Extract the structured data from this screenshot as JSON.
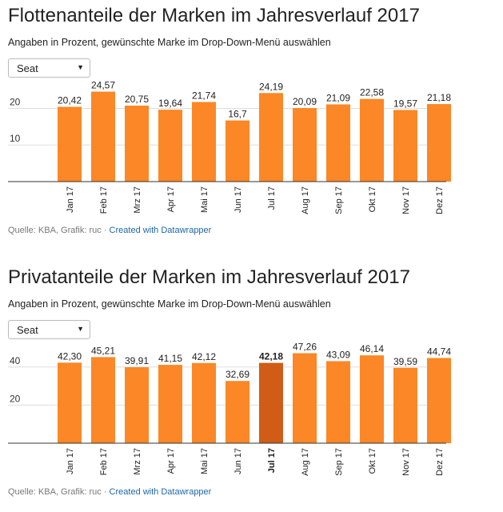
{
  "brand_colors": {
    "bar": "#fb8726",
    "bar_highlight": "#d05c17",
    "grid": "#dddddd",
    "axis": "#333333"
  },
  "charts": [
    {
      "title": "Flottenanteile der Marken im Jahresverlauf 2017",
      "subtitle": "Angaben in Prozent, gewünschte Marke im Drop-Down-Menü auswählen",
      "dropdown": {
        "selected": "Seat"
      },
      "source": {
        "text": "Quelle: KBA, Grafik: ruc ·",
        "link": "Created with Datawrapper"
      }
    },
    {
      "title": "Privatanteile der Marken im Jahresverlauf 2017",
      "subtitle": "Angaben in Prozent, gewünschte Marke im Drop-Down-Menü auswählen",
      "dropdown": {
        "selected": "Seat"
      },
      "source": {
        "text": "Quelle: KBA, Grafik: ruc ·",
        "link": "Created with Datawrapper"
      }
    }
  ],
  "chart_data": [
    {
      "type": "bar",
      "title": "Flottenanteile der Marken im Jahresverlauf 2017",
      "categories": [
        "Jan 17",
        "Feb 17",
        "Mrz 17",
        "Apr 17",
        "Mai 17",
        "Jun 17",
        "Jul 17",
        "Aug 17",
        "Sep 17",
        "Okt 17",
        "Nov 17",
        "Dez 17"
      ],
      "values": [
        20.42,
        24.57,
        20.75,
        19.64,
        21.74,
        16.7,
        24.19,
        20.09,
        21.09,
        22.58,
        19.57,
        21.18
      ],
      "value_labels": [
        "20,42",
        "24,57",
        "20,75",
        "19,64",
        "21,74",
        "16,7",
        "24,19",
        "20,09",
        "21,09",
        "22,58",
        "19,57",
        "21,18"
      ],
      "yticks": [
        10,
        20
      ],
      "ylim": [
        0,
        26
      ],
      "grid": true,
      "highlight_index": null
    },
    {
      "type": "bar",
      "title": "Privatanteile der Marken im Jahresverlauf 2017",
      "categories": [
        "Jan 17",
        "Feb 17",
        "Mrz 17",
        "Apr 17",
        "Mai 17",
        "Jun 17",
        "Jul 17",
        "Aug 17",
        "Sep 17",
        "Okt 17",
        "Nov 17",
        "Dez 17"
      ],
      "values": [
        42.3,
        45.21,
        39.91,
        41.15,
        42.12,
        32.69,
        42.18,
        47.26,
        43.09,
        46.14,
        39.59,
        44.74
      ],
      "value_labels": [
        "42,30",
        "45,21",
        "39,91",
        "41,15",
        "42,12",
        "32,69",
        "42,18",
        "47,26",
        "43,09",
        "46,14",
        "39,59",
        "44,74"
      ],
      "yticks": [
        20,
        40
      ],
      "ylim": [
        0,
        50
      ],
      "grid": true,
      "highlight_index": 6
    }
  ]
}
